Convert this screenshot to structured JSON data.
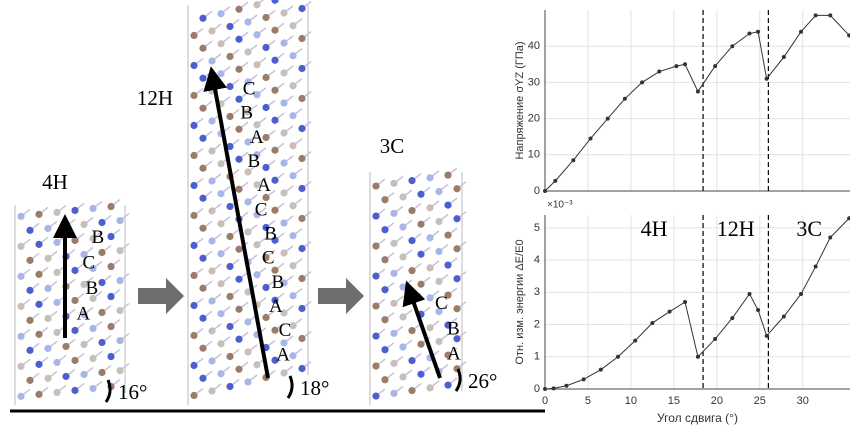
{
  "diagram": {
    "structures": [
      {
        "label": "4H",
        "stacking": [
          "A",
          "B",
          "C",
          "B"
        ],
        "angle": "16°"
      },
      {
        "label": "12H",
        "stacking": [
          "A",
          "C",
          "A",
          "B",
          "C",
          "B",
          "C",
          "A",
          "B",
          "A",
          "B",
          "C"
        ],
        "angle": "18°"
      },
      {
        "label": "3C",
        "stacking": [
          "A",
          "B",
          "C"
        ],
        "angle": "26°"
      }
    ]
  },
  "chart_data": [
    {
      "type": "line",
      "y_label": "Напряжение σYZ (ГПа)",
      "x": [
        0,
        1.2,
        3.3,
        5.3,
        7.3,
        9.3,
        11.3,
        13.3,
        15.3,
        16.3,
        17.8,
        19.8,
        21.8,
        23.8,
        24.8,
        25.8,
        27.8,
        29.8,
        31.5,
        33.2,
        35.4
      ],
      "series": [
        {
          "color": "#333333",
          "values": [
            0,
            2.8,
            8.5,
            14.5,
            20,
            25.5,
            30,
            33,
            34.5,
            35,
            27.5,
            34.5,
            40,
            43.5,
            44,
            31,
            37,
            44,
            48.5,
            48.5,
            43
          ]
        }
      ],
      "xlim": [
        0,
        35.5
      ],
      "ylim": [
        0,
        50
      ],
      "xticks": [
        0,
        5,
        10,
        15,
        20,
        25,
        30
      ],
      "yticks": [
        0,
        10,
        20,
        30,
        40
      ],
      "vlines": [
        18.4,
        26
      ],
      "grid": true
    },
    {
      "type": "line",
      "y_label": "Отн. изм. энергии ΔE/E0",
      "x_label": "Угол сдвига (°)",
      "y_multiplier": "×10⁻³",
      "regions": [
        "4H",
        "12H",
        "3C"
      ],
      "x": [
        0,
        1,
        2.5,
        4.5,
        6.5,
        8.5,
        10.5,
        12.5,
        14.5,
        16.3,
        17.8,
        19.8,
        21.8,
        23.8,
        24.8,
        25.8,
        27.8,
        29.8,
        31.5,
        33.2,
        35.4
      ],
      "series": [
        {
          "color": "#333333",
          "values": [
            0,
            0.02,
            0.1,
            0.3,
            0.6,
            1.0,
            1.5,
            2.05,
            2.4,
            2.7,
            1.0,
            1.55,
            2.2,
            2.95,
            2.45,
            1.65,
            2.25,
            2.95,
            3.8,
            4.7,
            5.3
          ]
        }
      ],
      "xlim": [
        0,
        35.5
      ],
      "ylim": [
        0,
        5.4
      ],
      "xticks": [
        0,
        5,
        10,
        15,
        20,
        25,
        30
      ],
      "yticks": [
        0,
        1,
        2,
        3,
        4,
        5
      ],
      "vlines": [
        18.4,
        26
      ],
      "grid": true
    }
  ]
}
